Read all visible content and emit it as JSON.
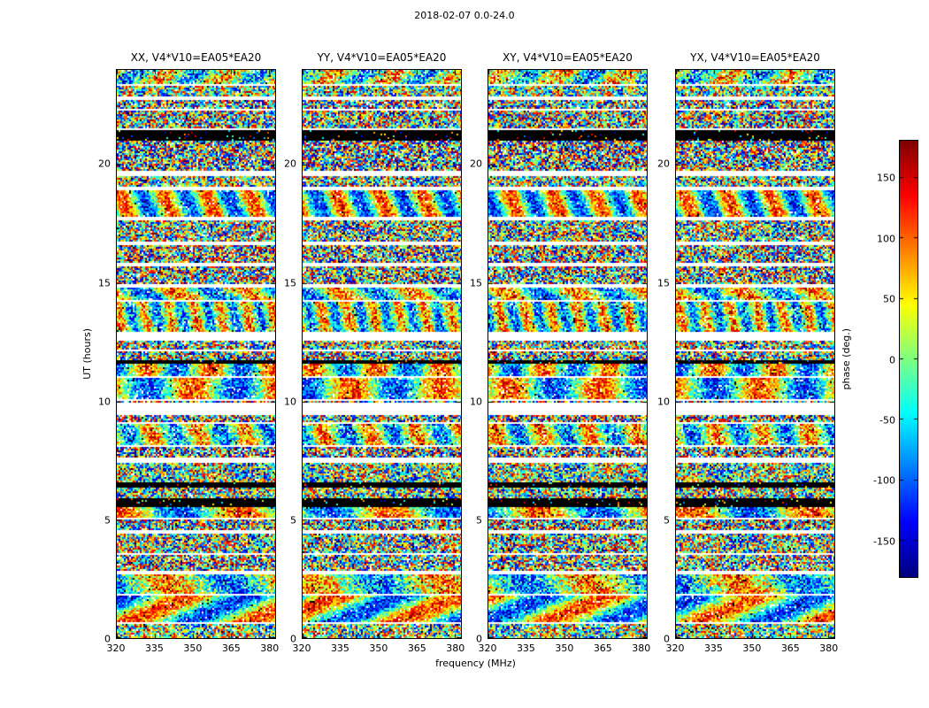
{
  "figure": {
    "title": "2018-02-07 0.0-24.0",
    "xlabel": "frequency (MHz)",
    "ylabel": "UT (hours)",
    "background": "#ffffff"
  },
  "panels": [
    {
      "title": "XX, V4*V10=EA05*EA20"
    },
    {
      "title": "YY, V4*V10=EA05*EA20"
    },
    {
      "title": "XY, V4*V10=EA05*EA20"
    },
    {
      "title": "YX, V4*V10=EA05*EA20"
    }
  ],
  "colorbar": {
    "label": "phase (deg.)",
    "ticks": [
      150,
      100,
      50,
      0,
      -50,
      -100,
      -150
    ],
    "vmin": -180,
    "vmax": 180,
    "colormap": "jet"
  },
  "chart_data": {
    "type": "heatmap",
    "title": "2018-02-07 0.0-24.0",
    "xlabel": "frequency (MHz)",
    "ylabel": "UT (hours)",
    "value_label": "phase (deg.)",
    "value_range": [
      -180,
      180
    ],
    "colormap": "jet",
    "x_ticks": [
      320,
      335,
      350,
      365,
      380
    ],
    "y_ticks": [
      0,
      5,
      10,
      15,
      20
    ],
    "x_range": [
      320,
      382.5
    ],
    "y_range": [
      0,
      24
    ],
    "panels": [
      "XX, V4*V10=EA05*EA20",
      "YY, V4*V10=EA05*EA20",
      "XY, V4*V10=EA05*EA20",
      "YX, V4*V10=EA05*EA20"
    ],
    "content": "Interferometric visibility phase (deg.) versus frequency (320-382 MHz) and time (UT 0-24 h) for four polarization products; pixel values are noise-like wrapped phases rendered with the jet colormap. Horizontal white bands are flagged time ranges; solid black bands are saturated/flagged phase rows.",
    "noise_seed": 20180207,
    "black_bands_ut": [
      [
        21.2,
        21.42
      ],
      [
        5.66,
        5.85
      ]
    ],
    "white_bands_ut": [
      [
        9.55,
        9.9
      ],
      [
        21.44,
        21.52
      ]
    ]
  }
}
